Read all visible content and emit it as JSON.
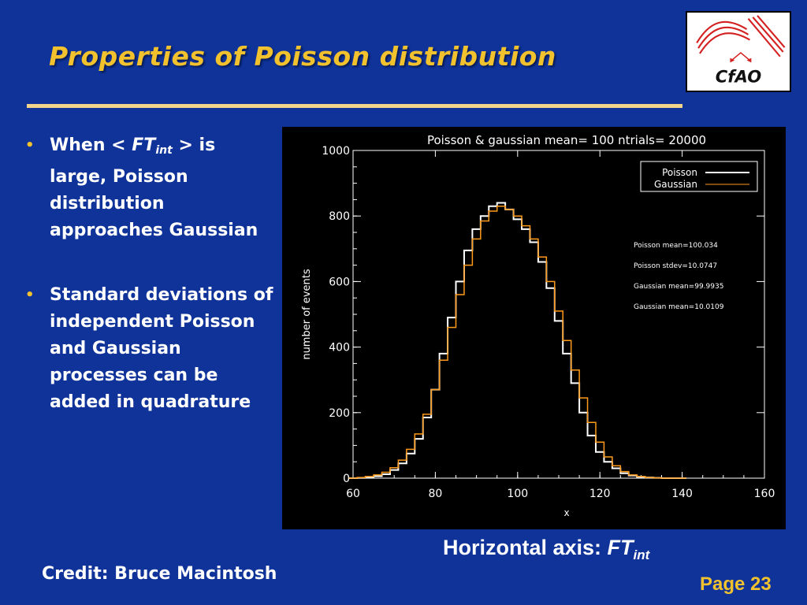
{
  "slide": {
    "title": "Properties of Poisson distribution",
    "logo_text": "CfAO",
    "bullets": [
      {
        "pre": "When < ",
        "ft": "FT",
        "sub": "int",
        "post": " > is large, Poisson distribution approaches Gaussian"
      },
      {
        "text": "Standard deviations of independent Poisson and Gaussian processes can be added in quadrature"
      }
    ],
    "horizontal_axis": {
      "label": "Horizontal axis: ",
      "ft": "FT",
      "sub": "int"
    },
    "credit": "Credit: Bruce Macintosh",
    "page": "Page 23"
  },
  "colors": {
    "background": "#0f3399",
    "title": "#f2c12e",
    "poisson": "#ffffff",
    "gaussian": "#ff9a1a"
  },
  "chart_data": {
    "type": "line",
    "title": "Poisson & gaussian mean=  100 ntrials= 20000",
    "xlabel": "x",
    "ylabel": "number of events",
    "xlim": [
      60,
      160
    ],
    "ylim": [
      0,
      1000
    ],
    "x_ticks": [
      "60",
      "80",
      "100",
      "120",
      "140",
      "160"
    ],
    "y_ticks": [
      "0",
      "200",
      "400",
      "600",
      "800",
      "1000"
    ],
    "legend": {
      "placement": "top-right",
      "entries": [
        "Poisson",
        "Gaussian"
      ]
    },
    "annotations": [
      "Poisson mean=100.034",
      "Poisson stdev=10.0747",
      "Gaussian mean=99.9935",
      "Gaussian mean=10.0109"
    ],
    "series": [
      {
        "name": "Poisson",
        "x": [
          60,
          62,
          64,
          66,
          68,
          70,
          72,
          74,
          76,
          78,
          80,
          82,
          84,
          86,
          88,
          90,
          92,
          94,
          96,
          98,
          100,
          102,
          104,
          106,
          108,
          110,
          112,
          114,
          116,
          118,
          120,
          122,
          124,
          126,
          128,
          130,
          132,
          134,
          136,
          138,
          140
        ],
        "values": [
          0,
          1,
          3,
          6,
          12,
          25,
          45,
          75,
          120,
          185,
          270,
          380,
          490,
          600,
          695,
          760,
          800,
          830,
          840,
          820,
          790,
          760,
          720,
          660,
          580,
          480,
          380,
          290,
          200,
          130,
          80,
          50,
          30,
          15,
          8,
          4,
          2,
          1,
          0,
          0,
          0
        ]
      },
      {
        "name": "Gaussian",
        "x": [
          60,
          62,
          64,
          66,
          68,
          70,
          72,
          74,
          76,
          78,
          80,
          82,
          84,
          86,
          88,
          90,
          92,
          94,
          96,
          98,
          100,
          102,
          104,
          106,
          108,
          110,
          112,
          114,
          116,
          118,
          120,
          122,
          124,
          126,
          128,
          130,
          132,
          134,
          136,
          138,
          140
        ],
        "values": [
          0,
          2,
          5,
          10,
          18,
          32,
          55,
          88,
          135,
          195,
          270,
          360,
          460,
          560,
          650,
          730,
          785,
          815,
          830,
          820,
          800,
          770,
          730,
          675,
          600,
          510,
          420,
          330,
          245,
          170,
          110,
          65,
          38,
          20,
          10,
          5,
          2,
          1,
          0,
          0,
          0
        ]
      }
    ]
  }
}
